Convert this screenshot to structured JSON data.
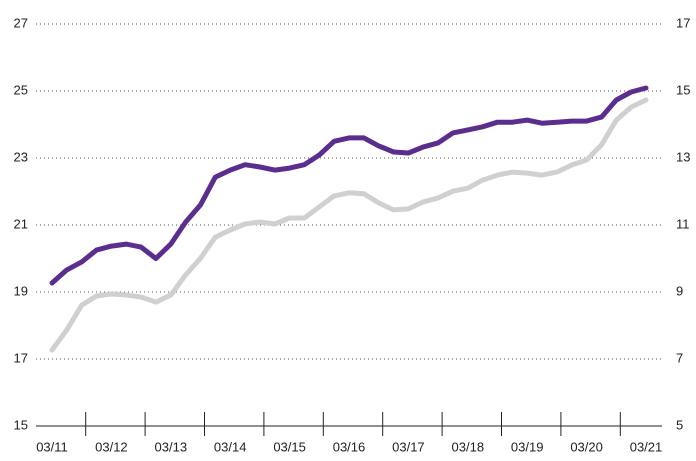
{
  "chart_data": {
    "type": "line",
    "categories": [
      "03/11",
      null,
      null,
      null,
      "03/12",
      null,
      null,
      null,
      "03/13",
      null,
      null,
      null,
      "03/14",
      null,
      null,
      null,
      "03/15",
      null,
      null,
      null,
      "03/16",
      null,
      null,
      null,
      "03/17",
      null,
      null,
      null,
      "03/18",
      null,
      null,
      null,
      "03/19",
      null,
      null,
      null,
      "03/20",
      null,
      null,
      null,
      "03/21"
    ],
    "series": [
      {
        "color": "#5b2d8e",
        "axis": "y",
        "values": [
          19.27,
          19.66,
          19.9,
          20.25,
          20.37,
          20.43,
          20.34,
          20.0,
          20.43,
          21.09,
          21.6,
          22.43,
          22.64,
          22.8,
          22.73,
          22.64,
          22.7,
          22.8,
          23.09,
          23.5,
          23.6,
          23.6,
          23.36,
          23.18,
          23.15,
          23.33,
          23.45,
          23.75,
          23.84,
          23.93,
          24.07,
          24.07,
          24.13,
          24.04,
          24.07,
          24.1,
          24.1,
          24.22,
          24.73,
          24.97,
          25.09
        ]
      },
      {
        "color": "#d0d0d0",
        "axis": "y2",
        "values": [
          7.27,
          7.87,
          8.61,
          8.88,
          8.94,
          8.91,
          8.85,
          8.7,
          8.91,
          9.51,
          10.01,
          10.64,
          10.85,
          11.03,
          11.09,
          11.03,
          11.21,
          11.21,
          11.54,
          11.87,
          11.96,
          11.93,
          11.66,
          11.45,
          11.48,
          11.69,
          11.81,
          12.01,
          12.1,
          12.34,
          12.49,
          12.58,
          12.55,
          12.49,
          12.58,
          12.79,
          12.94,
          13.39,
          14.13,
          14.52,
          14.73
        ]
      }
    ],
    "ylim": [
      15,
      27
    ],
    "yticks": [
      15,
      17,
      19,
      21,
      23,
      25,
      27
    ],
    "y2lim": [
      5,
      17
    ],
    "y2ticks": [
      5,
      7,
      9,
      11,
      13,
      15,
      17
    ],
    "grid": true
  }
}
